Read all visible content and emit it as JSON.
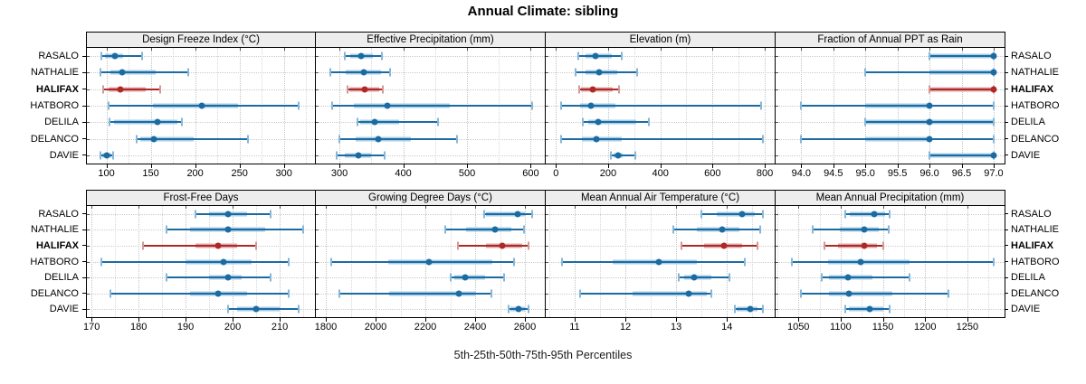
{
  "title": "Annual Climate: sibling",
  "x_axis_label": "5th-25th-50th-75th-95th Percentiles",
  "stations": [
    "RASALO",
    "NATHALIE",
    "HALIFAX",
    "HATBORO",
    "DELILA",
    "DELANCO",
    "DAVIE"
  ],
  "highlight_station": "HALIFAX",
  "percentiles": [
    5,
    25,
    50,
    75,
    95
  ],
  "colors": {
    "blue": "#1b6ba3",
    "blue_band": "#a8cde5",
    "blue_cap": "#86b7d8",
    "red": "#b02826",
    "red_band": "#ddaaa8",
    "red_cap": "#d29a97",
    "grid_major": "#c3c3c3",
    "grid_minor": "#d8d8d8",
    "header_bg": "#ededed",
    "border": "#000000"
  },
  "chart_data": [
    {
      "type": "dot-interval",
      "panel_title": "Design Freeze Index (°C)",
      "grid_row": 0,
      "grid_col": 0,
      "xlim": [
        78,
        335
      ],
      "xticks": [
        100,
        150,
        200,
        250,
        300
      ],
      "xtick_labels": [
        "100",
        "150",
        "200",
        "250",
        "300"
      ],
      "minor_step": 25,
      "series": [
        {
          "name": "RASALO",
          "highlight": false,
          "values": [
            94,
            98,
            110,
            119,
            140
          ]
        },
        {
          "name": "NATHALIE",
          "highlight": false,
          "values": [
            93,
            105,
            118,
            156,
            192
          ]
        },
        {
          "name": "HALIFAX",
          "highlight": true,
          "values": [
            96,
            102,
            116,
            144,
            161
          ]
        },
        {
          "name": "HATBORO",
          "highlight": false,
          "values": [
            102,
            152,
            208,
            248,
            317
          ]
        },
        {
          "name": "DELILA",
          "highlight": false,
          "values": [
            104,
            109,
            158,
            180,
            185
          ]
        },
        {
          "name": "DELANCO",
          "highlight": false,
          "values": [
            134,
            138,
            153,
            198,
            260
          ]
        },
        {
          "name": "DAVIE",
          "highlight": false,
          "values": [
            93,
            95,
            100,
            106,
            108
          ]
        }
      ]
    },
    {
      "type": "dot-interval",
      "panel_title": "Effective Precipitation (mm)",
      "grid_row": 0,
      "grid_col": 1,
      "xlim": [
        263,
        622
      ],
      "xticks": [
        300,
        400,
        500,
        600
      ],
      "xtick_labels": [
        "300",
        "400",
        "500",
        "600"
      ],
      "minor_step": 50,
      "series": [
        {
          "name": "RASALO",
          "highlight": false,
          "values": [
            309,
            317,
            334,
            353,
            366
          ]
        },
        {
          "name": "NATHALIE",
          "highlight": false,
          "values": [
            286,
            310,
            338,
            365,
            380
          ]
        },
        {
          "name": "HALIFAX",
          "highlight": true,
          "values": [
            312,
            315,
            340,
            362,
            368
          ]
        },
        {
          "name": "HATBORO",
          "highlight": false,
          "values": [
            288,
            322,
            375,
            473,
            602
          ]
        },
        {
          "name": "DELILA",
          "highlight": false,
          "values": [
            328,
            333,
            355,
            393,
            454
          ]
        },
        {
          "name": "DELANCO",
          "highlight": false,
          "values": [
            300,
            325,
            361,
            412,
            484
          ]
        },
        {
          "name": "DAVIE",
          "highlight": false,
          "values": [
            295,
            308,
            329,
            350,
            371
          ]
        }
      ]
    },
    {
      "type": "dot-interval",
      "panel_title": "Elevation (m)",
      "grid_row": 0,
      "grid_col": 2,
      "xlim": [
        -39,
        838
      ],
      "xticks": [
        0,
        200,
        400,
        600,
        800
      ],
      "xtick_labels": [
        "0",
        "200",
        "400",
        "600",
        "800"
      ],
      "minor_step": 100,
      "series": [
        {
          "name": "RASALO",
          "highlight": false,
          "values": [
            85,
            115,
            150,
            213,
            253
          ]
        },
        {
          "name": "NATHALIE",
          "highlight": false,
          "values": [
            75,
            115,
            165,
            236,
            311
          ]
        },
        {
          "name": "HALIFAX",
          "highlight": true,
          "values": [
            90,
            95,
            140,
            219,
            242
          ]
        },
        {
          "name": "HATBORO",
          "highlight": false,
          "values": [
            21,
            92,
            136,
            228,
            785
          ]
        },
        {
          "name": "DELILA",
          "highlight": false,
          "values": [
            104,
            124,
            163,
            308,
            357
          ]
        },
        {
          "name": "DELANCO",
          "highlight": false,
          "values": [
            21,
            98,
            155,
            251,
            792
          ]
        },
        {
          "name": "DAVIE",
          "highlight": false,
          "values": [
            209,
            221,
            239,
            255,
            305
          ]
        }
      ]
    },
    {
      "type": "dot-interval",
      "panel_title": "Fraction of Annual PPT as Rain",
      "grid_row": 0,
      "grid_col": 3,
      "xlim": [
        93.6,
        97.17
      ],
      "xticks": [
        94,
        94.5,
        95,
        95.5,
        96,
        96.5,
        97
      ],
      "xtick_labels": [
        "94.0",
        "94.5",
        "95.0",
        "95.5",
        "96.0",
        "96.5",
        "97.0"
      ],
      "minor_step": 0.5,
      "series": [
        {
          "name": "RASALO",
          "highlight": false,
          "values": [
            96,
            96,
            97,
            97,
            97
          ]
        },
        {
          "name": "NATHALIE",
          "highlight": false,
          "values": [
            95,
            96,
            97,
            97,
            97
          ]
        },
        {
          "name": "HALIFAX",
          "highlight": true,
          "values": [
            96,
            96,
            97,
            97,
            97
          ]
        },
        {
          "name": "HATBORO",
          "highlight": false,
          "values": [
            94,
            95,
            96,
            96,
            97
          ]
        },
        {
          "name": "DELILA",
          "highlight": false,
          "values": [
            95,
            95,
            96,
            97,
            97
          ]
        },
        {
          "name": "DELANCO",
          "highlight": false,
          "values": [
            94,
            95,
            96,
            96,
            97
          ]
        },
        {
          "name": "DAVIE",
          "highlight": false,
          "values": [
            96,
            96,
            97,
            97,
            97
          ]
        }
      ]
    },
    {
      "type": "dot-interval",
      "panel_title": "Frost-Free Days",
      "grid_row": 1,
      "grid_col": 0,
      "xlim": [
        169,
        217.5
      ],
      "xticks": [
        170,
        180,
        190,
        200,
        210
      ],
      "xtick_labels": [
        "170",
        "180",
        "190",
        "200",
        "210"
      ],
      "minor_step": 5,
      "series": [
        {
          "name": "RASALO",
          "highlight": false,
          "values": [
            192,
            195,
            199,
            203,
            208
          ]
        },
        {
          "name": "NATHALIE",
          "highlight": false,
          "values": [
            186,
            191,
            199,
            207,
            215
          ]
        },
        {
          "name": "HALIFAX",
          "highlight": true,
          "values": [
            181,
            192,
            197,
            201,
            205
          ]
        },
        {
          "name": "HATBORO",
          "highlight": false,
          "values": [
            172,
            190,
            198,
            204,
            212
          ]
        },
        {
          "name": "DELILA",
          "highlight": false,
          "values": [
            186,
            195,
            199,
            202,
            208
          ]
        },
        {
          "name": "DELANCO",
          "highlight": false,
          "values": [
            174,
            191,
            197,
            203,
            212
          ]
        },
        {
          "name": "DAVIE",
          "highlight": false,
          "values": [
            199,
            201,
            205,
            210,
            214
          ]
        }
      ]
    },
    {
      "type": "dot-interval",
      "panel_title": "Growing Degree Days (°C)",
      "grid_row": 1,
      "grid_col": 1,
      "xlim": [
        1760,
        2680
      ],
      "xticks": [
        1800,
        2000,
        2200,
        2400,
        2600
      ],
      "xtick_labels": [
        "1800",
        "2000",
        "2200",
        "2400",
        "2600"
      ],
      "minor_step": 100,
      "series": [
        {
          "name": "RASALO",
          "highlight": false,
          "values": [
            2435,
            2445,
            2570,
            2600,
            2630
          ]
        },
        {
          "name": "NATHALIE",
          "highlight": false,
          "values": [
            2280,
            2365,
            2480,
            2545,
            2595
          ]
        },
        {
          "name": "HALIFAX",
          "highlight": true,
          "values": [
            2330,
            2445,
            2510,
            2590,
            2615
          ]
        },
        {
          "name": "HATBORO",
          "highlight": false,
          "values": [
            1820,
            2050,
            2215,
            2470,
            2555
          ]
        },
        {
          "name": "DELILA",
          "highlight": false,
          "values": [
            2300,
            2315,
            2360,
            2440,
            2515
          ]
        },
        {
          "name": "DELANCO",
          "highlight": false,
          "values": [
            1855,
            2055,
            2335,
            2405,
            2465
          ]
        },
        {
          "name": "DAVIE",
          "highlight": false,
          "values": [
            2533,
            2540,
            2575,
            2600,
            2615
          ]
        }
      ]
    },
    {
      "type": "dot-interval",
      "panel_title": "Mean Annual Air Temperature (°C)",
      "grid_row": 1,
      "grid_col": 2,
      "xlim": [
        10.43,
        14.94
      ],
      "xticks": [
        11,
        12,
        13,
        14
      ],
      "xtick_labels": [
        "11",
        "12",
        "13",
        "14"
      ],
      "minor_step": 0.5,
      "series": [
        {
          "name": "RASALO",
          "highlight": false,
          "values": [
            13.5,
            13.8,
            14.3,
            14.55,
            14.7
          ]
        },
        {
          "name": "NATHALIE",
          "highlight": false,
          "values": [
            12.95,
            13.4,
            13.9,
            14.25,
            14.65
          ]
        },
        {
          "name": "HALIFAX",
          "highlight": true,
          "values": [
            13.1,
            13.55,
            13.95,
            14.3,
            14.6
          ]
        },
        {
          "name": "HATBORO",
          "highlight": false,
          "values": [
            10.75,
            11.75,
            12.65,
            13.4,
            14.35
          ]
        },
        {
          "name": "DELILA",
          "highlight": false,
          "values": [
            13.05,
            13.15,
            13.35,
            13.7,
            14.05
          ]
        },
        {
          "name": "DELANCO",
          "highlight": false,
          "values": [
            11.1,
            12.15,
            13.25,
            13.6,
            13.7
          ]
        },
        {
          "name": "DAVIE",
          "highlight": false,
          "values": [
            14.15,
            14.2,
            14.45,
            14.6,
            14.7
          ]
        }
      ]
    },
    {
      "type": "dot-interval",
      "panel_title": "Mean Annual Precipitation (mm)",
      "grid_row": 1,
      "grid_col": 3,
      "xlim": [
        1023,
        1294
      ],
      "xticks": [
        1050,
        1100,
        1150,
        1200,
        1250
      ],
      "xtick_labels": [
        "1050",
        "1100",
        "1150",
        "1200",
        "1250"
      ],
      "minor_step": 25,
      "series": [
        {
          "name": "RASALO",
          "highlight": false,
          "values": [
            1105,
            1111,
            1140,
            1153,
            1158
          ]
        },
        {
          "name": "NATHALIE",
          "highlight": false,
          "values": [
            1067,
            1099,
            1128,
            1145,
            1157
          ]
        },
        {
          "name": "HALIFAX",
          "highlight": true,
          "values": [
            1081,
            1097,
            1128,
            1143,
            1150
          ]
        },
        {
          "name": "HATBORO",
          "highlight": false,
          "values": [
            1042,
            1085,
            1124,
            1182,
            1281
          ]
        },
        {
          "name": "DELILA",
          "highlight": false,
          "values": [
            1078,
            1086,
            1109,
            1138,
            1182
          ]
        },
        {
          "name": "DELANCO",
          "highlight": false,
          "values": [
            1053,
            1086,
            1110,
            1161,
            1228
          ]
        },
        {
          "name": "DAVIE",
          "highlight": false,
          "values": [
            1106,
            1110,
            1134,
            1150,
            1158
          ]
        }
      ]
    }
  ]
}
